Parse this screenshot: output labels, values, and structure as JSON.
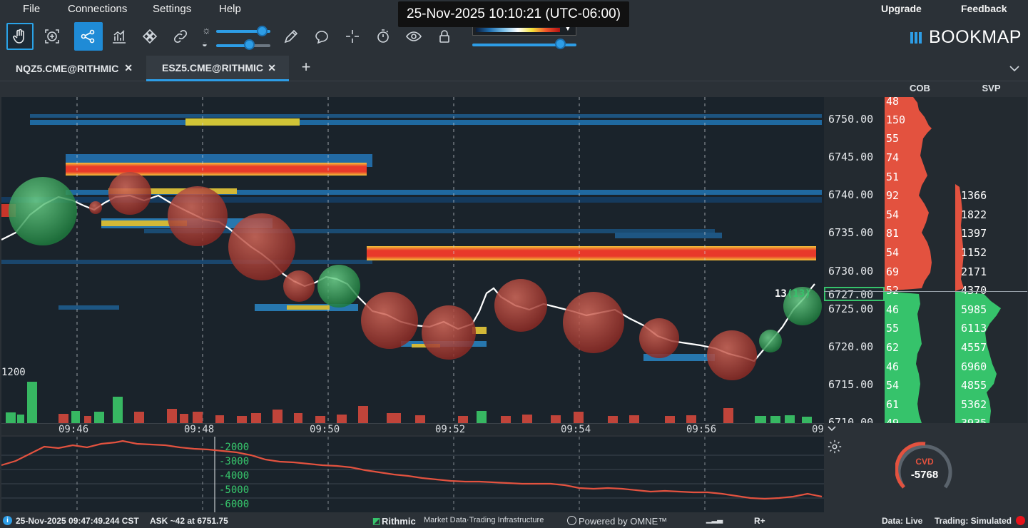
{
  "menu": {
    "file": "File",
    "connections": "Connections",
    "settings": "Settings",
    "help": "Help",
    "upgrade": "Upgrade",
    "feedback": "Feedback"
  },
  "timestamp": "25-Nov-2025 10:10:21 (UTC-06:00)",
  "brand": "BOOKMAP",
  "tabs": [
    {
      "label": "NQZ5.CME@RITHMIC",
      "active": false
    },
    {
      "label": "ESZ5.CME@RITHMIC",
      "active": true
    }
  ],
  "columns": {
    "cob": "COB",
    "svp": "SVP"
  },
  "price_axis": [
    "6750.00",
    "6745.00",
    "6740.00",
    "6735.00",
    "6730.00",
    "6725.00",
    "6720.00",
    "6715.00",
    "6710.00"
  ],
  "current_price": "6727.00",
  "trade_label": "13",
  "trade_label_paren": "(13)",
  "volume_label": "1200",
  "cob_values": [
    "48",
    "150",
    "55",
    "74",
    "51",
    "92",
    "54",
    "81",
    "54",
    "69",
    "52",
    "46",
    "55",
    "62",
    "46",
    "54",
    "61",
    "49"
  ],
  "svp_values": [
    "1366",
    "1822",
    "1397",
    "1152",
    "2171",
    "4370",
    "5985",
    "6113",
    "4557",
    "6960",
    "4855",
    "5362",
    "3935"
  ],
  "time_labels": [
    "09:46",
    "09:48",
    "09:50",
    "09:52",
    "09:54",
    "09:56",
    "09:"
  ],
  "cvd_axis": [
    "-2000",
    "-3000",
    "-4000",
    "-5000",
    "-6000"
  ],
  "cvd_gauge": {
    "label": "CVD",
    "value": "-5768"
  },
  "status": {
    "time": "25-Nov-2025 09:47:49.244 CST",
    "ask": "ASK ~42 at 6751.75",
    "rithmic": "Rithmic",
    "rithmic_tag": "Market Data·Trading Infrastructure",
    "omne": "Powered by OMNE™",
    "rplus": "R+",
    "data": "Data: Live",
    "trading": "Trading: Simulated"
  },
  "colors": {
    "accent": "#2d9de6",
    "bid": "#36c36b",
    "ask": "#e3523f",
    "bg": "#1a232b"
  }
}
